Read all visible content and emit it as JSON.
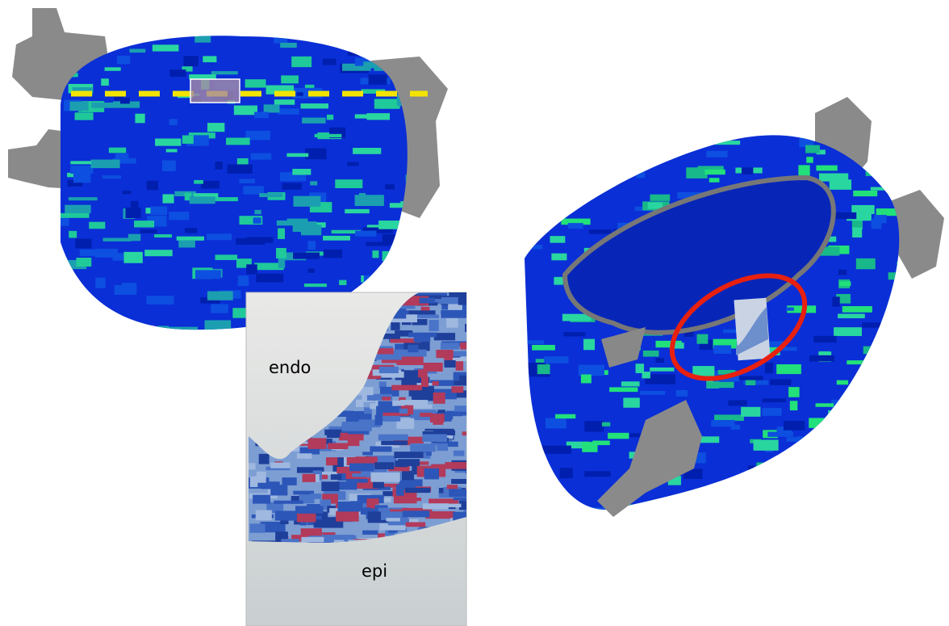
{
  "histology": {
    "labels": [
      "endo",
      "epi"
    ]
  }
}
